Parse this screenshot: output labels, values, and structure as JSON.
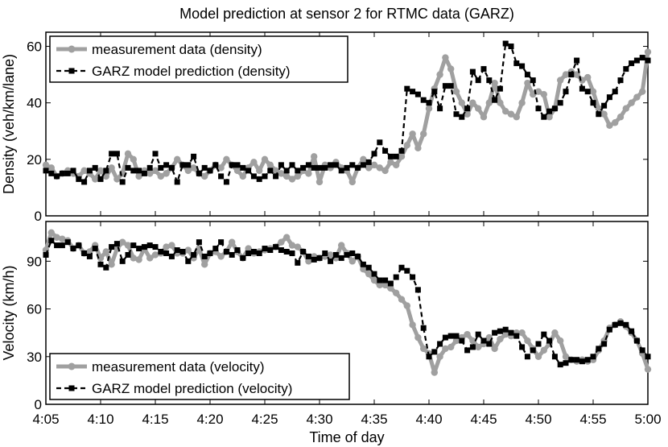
{
  "title": "Model prediction at sensor 2 for RTMC data (GARZ)",
  "xlabel": "Time of day",
  "colors": {
    "measurement": "#a0a0a0",
    "model": "#000000"
  },
  "chart_data": [
    {
      "type": "line",
      "ylabel": "Density (veh/km/lane)",
      "ylim": [
        0,
        65
      ],
      "yticks": [
        0,
        20,
        40,
        60
      ],
      "xlim": [
        "4:05",
        "5:00"
      ],
      "xticks": [
        "4:05",
        "4:10",
        "4:15",
        "4:20",
        "4:25",
        "4:30",
        "4:35",
        "4:40",
        "4:45",
        "4:50",
        "4:55",
        "5:00"
      ],
      "legend_position": "top-left",
      "series": [
        {
          "name": "measurement data (density)",
          "style": "thick gray solid with circle markers",
          "x": [
            "4:05:00",
            "4:05:30",
            "4:06:00",
            "4:06:30",
            "4:07:00",
            "4:07:30",
            "4:08:00",
            "4:08:30",
            "4:09:00",
            "4:09:30",
            "4:10:00",
            "4:10:30",
            "4:11:00",
            "4:11:30",
            "4:12:00",
            "4:12:30",
            "4:13:00",
            "4:13:30",
            "4:14:00",
            "4:14:30",
            "4:15:00",
            "4:15:30",
            "4:16:00",
            "4:16:30",
            "4:17:00",
            "4:17:30",
            "4:18:00",
            "4:18:30",
            "4:19:00",
            "4:19:30",
            "4:20:00",
            "4:20:30",
            "4:21:00",
            "4:21:30",
            "4:22:00",
            "4:22:30",
            "4:23:00",
            "4:23:30",
            "4:24:00",
            "4:24:30",
            "4:25:00",
            "4:25:30",
            "4:26:00",
            "4:26:30",
            "4:27:00",
            "4:27:30",
            "4:28:00",
            "4:28:30",
            "4:29:00",
            "4:29:30",
            "4:30:00",
            "4:30:30",
            "4:31:00",
            "4:31:30",
            "4:32:00",
            "4:32:30",
            "4:33:00",
            "4:33:30",
            "4:34:00",
            "4:34:30",
            "4:35:00",
            "4:35:30",
            "4:36:00",
            "4:36:30",
            "4:37:00",
            "4:37:30",
            "4:38:00",
            "4:38:30",
            "4:39:00",
            "4:39:30",
            "4:40:00",
            "4:40:30",
            "4:41:00",
            "4:41:30",
            "4:42:00",
            "4:42:30",
            "4:43:00",
            "4:43:30",
            "4:44:00",
            "4:44:30",
            "4:45:00",
            "4:45:30",
            "4:46:00",
            "4:46:30",
            "4:47:00",
            "4:47:30",
            "4:48:00",
            "4:48:30",
            "4:49:00",
            "4:49:30",
            "4:50:00",
            "4:50:30",
            "4:51:00",
            "4:51:30",
            "4:52:00",
            "4:52:30",
            "4:53:00",
            "4:53:30",
            "4:54:00",
            "4:54:30",
            "4:55:00",
            "4:55:30",
            "4:56:00",
            "4:56:30",
            "4:57:00",
            "4:57:30",
            "4:58:00",
            "4:58:30",
            "4:59:00",
            "4:59:30",
            "5:00:00"
          ],
          "values": [
            18,
            17,
            14,
            15,
            16,
            15,
            14,
            16,
            15,
            13,
            16,
            14,
            17,
            13,
            15,
            22,
            20,
            14,
            16,
            15,
            16,
            14,
            15,
            17,
            20,
            18,
            16,
            17,
            15,
            14,
            16,
            18,
            17,
            20,
            18,
            16,
            14,
            17,
            19,
            16,
            20,
            18,
            16,
            15,
            14,
            13,
            14,
            16,
            15,
            21,
            12,
            18,
            17,
            19,
            17,
            16,
            12,
            17,
            20,
            17,
            18,
            17,
            16,
            19,
            18,
            21,
            25,
            29,
            24,
            29,
            38,
            45,
            50,
            56,
            52,
            44,
            40,
            36,
            40,
            38,
            35,
            40,
            47,
            40,
            37,
            36,
            35,
            40,
            47,
            43,
            44,
            43,
            35,
            38,
            48,
            50,
            51,
            50,
            48,
            49,
            44,
            38,
            36,
            32,
            33,
            35,
            38,
            40,
            42,
            44,
            58
          ]
        },
        {
          "name": "GARZ model prediction (density)",
          "style": "black dashed with square markers",
          "x": [
            "4:05:00",
            "4:05:30",
            "4:06:00",
            "4:06:30",
            "4:07:00",
            "4:07:30",
            "4:08:00",
            "4:08:30",
            "4:09:00",
            "4:09:30",
            "4:10:00",
            "4:10:30",
            "4:11:00",
            "4:11:30",
            "4:12:00",
            "4:12:30",
            "4:13:00",
            "4:13:30",
            "4:14:00",
            "4:14:30",
            "4:15:00",
            "4:15:30",
            "4:16:00",
            "4:16:30",
            "4:17:00",
            "4:17:30",
            "4:18:00",
            "4:18:30",
            "4:19:00",
            "4:19:30",
            "4:20:00",
            "4:20:30",
            "4:21:00",
            "4:21:30",
            "4:22:00",
            "4:22:30",
            "4:23:00",
            "4:23:30",
            "4:24:00",
            "4:24:30",
            "4:25:00",
            "4:25:30",
            "4:26:00",
            "4:26:30",
            "4:27:00",
            "4:27:30",
            "4:28:00",
            "4:28:30",
            "4:29:00",
            "4:29:30",
            "4:30:00",
            "4:30:30",
            "4:31:00",
            "4:31:30",
            "4:32:00",
            "4:32:30",
            "4:33:00",
            "4:33:30",
            "4:34:00",
            "4:34:30",
            "4:35:00",
            "4:35:30",
            "4:36:00",
            "4:36:30",
            "4:37:00",
            "4:37:30",
            "4:38:00",
            "4:38:30",
            "4:39:00",
            "4:39:30",
            "4:40:00",
            "4:40:30",
            "4:41:00",
            "4:41:30",
            "4:42:00",
            "4:42:30",
            "4:43:00",
            "4:43:30",
            "4:44:00",
            "4:44:30",
            "4:45:00",
            "4:45:30",
            "4:46:00",
            "4:46:30",
            "4:47:00",
            "4:47:30",
            "4:48:00",
            "4:48:30",
            "4:49:00",
            "4:49:30",
            "4:50:00",
            "4:50:30",
            "4:51:00",
            "4:51:30",
            "4:52:00",
            "4:52:30",
            "4:53:00",
            "4:53:30",
            "4:54:00",
            "4:54:30",
            "4:55:00",
            "4:55:30",
            "4:56:00",
            "4:56:30",
            "4:57:00",
            "4:57:30",
            "4:58:00",
            "4:58:30",
            "4:59:00",
            "4:59:30",
            "5:00:00"
          ],
          "values": [
            16,
            15,
            14,
            15,
            15,
            16,
            13,
            12,
            16,
            17,
            13,
            16,
            22,
            22,
            12,
            17,
            16,
            16,
            15,
            17,
            22,
            17,
            18,
            17,
            12,
            18,
            18,
            21,
            15,
            17,
            16,
            18,
            14,
            12,
            18,
            18,
            17,
            16,
            14,
            13,
            14,
            16,
            14,
            18,
            16,
            18,
            16,
            17,
            18,
            17,
            17,
            17,
            18,
            18,
            16,
            17,
            18,
            17,
            18,
            19,
            22,
            26,
            23,
            21,
            21,
            23,
            45,
            44,
            43,
            41,
            40,
            44,
            38,
            46,
            46,
            36,
            35,
            38,
            51,
            48,
            52,
            48,
            41,
            45,
            61,
            60,
            54,
            53,
            50,
            48,
            38,
            35,
            37,
            38,
            40,
            44,
            50,
            55,
            45,
            44,
            40,
            36,
            39,
            42,
            44,
            48,
            52,
            54,
            55,
            56,
            55
          ]
        }
      ]
    },
    {
      "type": "line",
      "ylabel": "Velocity (km/h)",
      "ylim": [
        0,
        115
      ],
      "yticks": [
        0,
        30,
        60,
        90
      ],
      "xlim": [
        "4:05",
        "5:00"
      ],
      "xticks": [
        "4:05",
        "4:10",
        "4:15",
        "4:20",
        "4:25",
        "4:30",
        "4:35",
        "4:40",
        "4:45",
        "4:50",
        "4:55",
        "5:00"
      ],
      "legend_position": "bottom-left",
      "series": [
        {
          "name": "measurement data (velocity)",
          "style": "thick gray solid with circle markers",
          "x": [
            "4:05:00",
            "4:05:30",
            "4:06:00",
            "4:06:30",
            "4:07:00",
            "4:07:30",
            "4:08:00",
            "4:08:30",
            "4:09:00",
            "4:09:30",
            "4:10:00",
            "4:10:30",
            "4:11:00",
            "4:11:30",
            "4:12:00",
            "4:12:30",
            "4:13:00",
            "4:13:30",
            "4:14:00",
            "4:14:30",
            "4:15:00",
            "4:15:30",
            "4:16:00",
            "4:16:30",
            "4:17:00",
            "4:17:30",
            "4:18:00",
            "4:18:30",
            "4:19:00",
            "4:19:30",
            "4:20:00",
            "4:20:30",
            "4:21:00",
            "4:21:30",
            "4:22:00",
            "4:22:30",
            "4:23:00",
            "4:23:30",
            "4:24:00",
            "4:24:30",
            "4:25:00",
            "4:25:30",
            "4:26:00",
            "4:26:30",
            "4:27:00",
            "4:27:30",
            "4:28:00",
            "4:28:30",
            "4:29:00",
            "4:29:30",
            "4:30:00",
            "4:30:30",
            "4:31:00",
            "4:31:30",
            "4:32:00",
            "4:32:30",
            "4:33:00",
            "4:33:30",
            "4:34:00",
            "4:34:30",
            "4:35:00",
            "4:35:30",
            "4:36:00",
            "4:36:30",
            "4:37:00",
            "4:37:30",
            "4:38:00",
            "4:38:30",
            "4:39:00",
            "4:39:30",
            "4:40:00",
            "4:40:30",
            "4:41:00",
            "4:41:30",
            "4:42:00",
            "4:42:30",
            "4:43:00",
            "4:43:30",
            "4:44:00",
            "4:44:30",
            "4:45:00",
            "4:45:30",
            "4:46:00",
            "4:46:30",
            "4:47:00",
            "4:47:30",
            "4:48:00",
            "4:48:30",
            "4:49:00",
            "4:49:30",
            "4:50:00",
            "4:50:30",
            "4:51:00",
            "4:51:30",
            "4:52:00",
            "4:52:30",
            "4:53:00",
            "4:53:30",
            "4:54:00",
            "4:54:30",
            "4:55:00",
            "4:55:30",
            "4:56:00",
            "4:56:30",
            "4:57:00",
            "4:57:30",
            "4:58:00",
            "4:58:30",
            "4:59:00",
            "4:59:30",
            "5:00:00"
          ],
          "values": [
            97,
            108,
            105,
            104,
            103,
            98,
            100,
            95,
            96,
            100,
            92,
            96,
            88,
            98,
            102,
            100,
            92,
            91,
            98,
            92,
            94,
            95,
            99,
            100,
            95,
            95,
            97,
            92,
            98,
            88,
            95,
            96,
            93,
            96,
            102,
            96,
            92,
            98,
            95,
            96,
            97,
            98,
            99,
            102,
            105,
            100,
            99,
            96,
            90,
            93,
            92,
            93,
            94,
            92,
            100,
            95,
            90,
            93,
            85,
            82,
            78,
            75,
            75,
            73,
            70,
            66,
            62,
            50,
            42,
            35,
            32,
            20,
            30,
            35,
            36,
            40,
            42,
            44,
            40,
            36,
            38,
            42,
            35,
            41,
            44,
            43,
            45,
            45,
            40,
            35,
            30,
            34,
            38,
            45,
            40,
            30,
            28,
            27,
            28,
            27,
            28,
            34,
            40,
            48,
            50,
            52,
            49,
            45,
            40,
            32,
            22
          ]
        },
        {
          "name": "GARZ model prediction (velocity)",
          "style": "black dashed with square markers",
          "x": [
            "4:05:00",
            "4:05:30",
            "4:06:00",
            "4:06:30",
            "4:07:00",
            "4:07:30",
            "4:08:00",
            "4:08:30",
            "4:09:00",
            "4:09:30",
            "4:10:00",
            "4:10:30",
            "4:11:00",
            "4:11:30",
            "4:12:00",
            "4:12:30",
            "4:13:00",
            "4:13:30",
            "4:14:00",
            "4:14:30",
            "4:15:00",
            "4:15:30",
            "4:16:00",
            "4:16:30",
            "4:17:00",
            "4:17:30",
            "4:18:00",
            "4:18:30",
            "4:19:00",
            "4:19:30",
            "4:20:00",
            "4:20:30",
            "4:21:00",
            "4:21:30",
            "4:22:00",
            "4:22:30",
            "4:23:00",
            "4:23:30",
            "4:24:00",
            "4:24:30",
            "4:25:00",
            "4:25:30",
            "4:26:00",
            "4:26:30",
            "4:27:00",
            "4:27:30",
            "4:28:00",
            "4:28:30",
            "4:29:00",
            "4:29:30",
            "4:30:00",
            "4:30:30",
            "4:31:00",
            "4:31:30",
            "4:32:00",
            "4:32:30",
            "4:33:00",
            "4:33:30",
            "4:34:00",
            "4:34:30",
            "4:35:00",
            "4:35:30",
            "4:36:00",
            "4:36:30",
            "4:37:00",
            "4:37:30",
            "4:38:00",
            "4:38:30",
            "4:39:00",
            "4:39:30",
            "4:40:00",
            "4:40:30",
            "4:41:00",
            "4:41:30",
            "4:42:00",
            "4:42:30",
            "4:43:00",
            "4:43:30",
            "4:44:00",
            "4:44:30",
            "4:45:00",
            "4:45:30",
            "4:46:00",
            "4:46:30",
            "4:47:00",
            "4:47:30",
            "4:48:00",
            "4:48:30",
            "4:49:00",
            "4:49:30",
            "4:50:00",
            "4:50:30",
            "4:51:00",
            "4:51:30",
            "4:52:00",
            "4:52:30",
            "4:53:00",
            "4:53:30",
            "4:54:00",
            "4:54:30",
            "4:55:00",
            "4:55:30",
            "4:56:00",
            "4:56:30",
            "4:57:00",
            "4:57:30",
            "4:58:00",
            "4:58:30",
            "4:59:00",
            "4:59:30",
            "5:00:00"
          ],
          "values": [
            94,
            103,
            100,
            100,
            102,
            98,
            100,
            95,
            93,
            98,
            88,
            86,
            99,
            101,
            90,
            94,
            100,
            98,
            99,
            100,
            99,
            96,
            95,
            93,
            97,
            96,
            90,
            94,
            102,
            93,
            95,
            98,
            102,
            96,
            94,
            97,
            92,
            95,
            96,
            95,
            98,
            97,
            99,
            97,
            96,
            95,
            89,
            96,
            93,
            91,
            92,
            95,
            90,
            94,
            92,
            94,
            95,
            93,
            88,
            86,
            82,
            78,
            78,
            76,
            80,
            86,
            84,
            80,
            72,
            48,
            30,
            33,
            38,
            42,
            43,
            43,
            40,
            34,
            36,
            44,
            40,
            38,
            45,
            46,
            47,
            45,
            43,
            36,
            30,
            34,
            38,
            44,
            40,
            30,
            25,
            26,
            28,
            28,
            27,
            28,
            30,
            35,
            38,
            47,
            50,
            51,
            50,
            46,
            40,
            34,
            30
          ]
        }
      ]
    }
  ]
}
